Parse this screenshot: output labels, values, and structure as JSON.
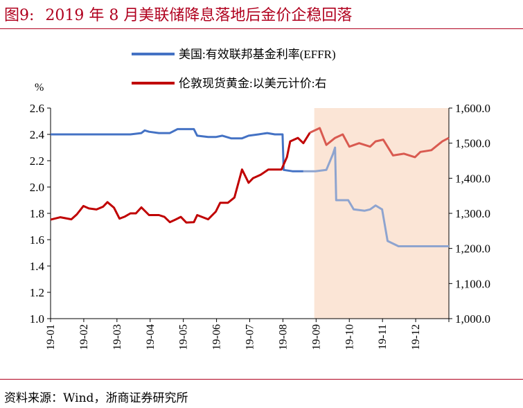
{
  "header": {
    "figure_no": "图9:",
    "title": "2019 年 8 月美联储降息落地后金价企稳回落"
  },
  "source": "资料来源：Wind，浙商证券研究所",
  "colors": {
    "title": "#b0001e",
    "effr": "#4472c4",
    "gold": "#c00000",
    "shade": "#fbe5d6",
    "effr_faded": "#8ea4cf",
    "gold_faded": "#d95a50"
  },
  "chart_data": {
    "type": "line",
    "left_unit": "%",
    "left_axis": {
      "ylim": [
        1.0,
        2.6
      ],
      "ticks": [
        "1.0",
        "1.2",
        "1.4",
        "1.6",
        "1.8",
        "2.0",
        "2.2",
        "2.4",
        "2.6"
      ]
    },
    "right_axis": {
      "ylim": [
        1000,
        1600
      ],
      "ticks": [
        "1,000.0",
        "1,100.0",
        "1,200.0",
        "1,300.0",
        "1,400.0",
        "1,500.0",
        "1,600.0"
      ]
    },
    "x_ticks": [
      "19-01",
      "19-02",
      "19-03",
      "19-04",
      "19-05",
      "19-06",
      "19-07",
      "19-08",
      "19-09",
      "19-10",
      "19-11",
      "19-12"
    ],
    "shaded_region": {
      "from": "2019-08-30",
      "to": "2019-12-31"
    },
    "series": [
      {
        "name": "美国:有效联邦基金利率(EFFR)",
        "axis": "left",
        "points": [
          [
            "2019-01-01",
            2.4
          ],
          [
            "2019-01-15",
            2.4
          ],
          [
            "2019-02-01",
            2.4
          ],
          [
            "2019-02-15",
            2.4
          ],
          [
            "2019-03-01",
            2.4
          ],
          [
            "2019-03-15",
            2.4
          ],
          [
            "2019-03-25",
            2.41
          ],
          [
            "2019-03-28",
            2.43
          ],
          [
            "2019-04-01",
            2.42
          ],
          [
            "2019-04-10",
            2.41
          ],
          [
            "2019-04-20",
            2.41
          ],
          [
            "2019-04-27",
            2.44
          ],
          [
            "2019-05-05",
            2.44
          ],
          [
            "2019-05-12",
            2.44
          ],
          [
            "2019-05-15",
            2.39
          ],
          [
            "2019-05-25",
            2.38
          ],
          [
            "2019-06-01",
            2.38
          ],
          [
            "2019-06-07",
            2.39
          ],
          [
            "2019-06-15",
            2.37
          ],
          [
            "2019-06-25",
            2.37
          ],
          [
            "2019-07-01",
            2.39
          ],
          [
            "2019-07-10",
            2.4
          ],
          [
            "2019-07-18",
            2.41
          ],
          [
            "2019-07-25",
            2.4
          ],
          [
            "2019-08-01",
            2.4
          ],
          [
            "2019-08-02",
            2.13
          ],
          [
            "2019-08-10",
            2.12
          ],
          [
            "2019-08-20",
            2.12
          ],
          [
            "2019-08-31",
            2.12
          ],
          [
            "2019-09-10",
            2.13
          ],
          [
            "2019-09-16",
            2.25
          ],
          [
            "2019-09-18",
            2.3
          ],
          [
            "2019-09-19",
            1.9
          ],
          [
            "2019-09-30",
            1.9
          ],
          [
            "2019-10-05",
            1.83
          ],
          [
            "2019-10-15",
            1.82
          ],
          [
            "2019-10-20",
            1.83
          ],
          [
            "2019-10-25",
            1.86
          ],
          [
            "2019-10-31",
            1.83
          ],
          [
            "2019-11-05",
            1.59
          ],
          [
            "2019-11-15",
            1.55
          ],
          [
            "2019-11-30",
            1.55
          ],
          [
            "2019-12-10",
            1.55
          ],
          [
            "2019-12-31",
            1.55
          ]
        ]
      },
      {
        "name": "伦敦现货黄金:以美元计价:右",
        "axis": "right",
        "points": [
          [
            "2019-01-01",
            1282
          ],
          [
            "2019-01-10",
            1289
          ],
          [
            "2019-01-20",
            1283
          ],
          [
            "2019-01-25",
            1297
          ],
          [
            "2019-01-31",
            1321
          ],
          [
            "2019-02-05",
            1314
          ],
          [
            "2019-02-12",
            1311
          ],
          [
            "2019-02-18",
            1319
          ],
          [
            "2019-02-22",
            1332
          ],
          [
            "2019-02-28",
            1316
          ],
          [
            "2019-03-05",
            1285
          ],
          [
            "2019-03-10",
            1291
          ],
          [
            "2019-03-15",
            1300
          ],
          [
            "2019-03-20",
            1300
          ],
          [
            "2019-03-25",
            1317
          ],
          [
            "2019-04-01",
            1295
          ],
          [
            "2019-04-10",
            1295
          ],
          [
            "2019-04-15",
            1290
          ],
          [
            "2019-04-20",
            1275
          ],
          [
            "2019-04-25",
            1282
          ],
          [
            "2019-04-30",
            1290
          ],
          [
            "2019-05-05",
            1274
          ],
          [
            "2019-05-12",
            1275
          ],
          [
            "2019-05-15",
            1295
          ],
          [
            "2019-05-25",
            1283
          ],
          [
            "2019-06-01",
            1305
          ],
          [
            "2019-06-05",
            1330
          ],
          [
            "2019-06-12",
            1330
          ],
          [
            "2019-06-18",
            1345
          ],
          [
            "2019-06-25",
            1425
          ],
          [
            "2019-07-01",
            1387
          ],
          [
            "2019-07-05",
            1400
          ],
          [
            "2019-07-12",
            1410
          ],
          [
            "2019-07-19",
            1425
          ],
          [
            "2019-07-31",
            1425
          ],
          [
            "2019-08-05",
            1460
          ],
          [
            "2019-08-08",
            1505
          ],
          [
            "2019-08-15",
            1515
          ],
          [
            "2019-08-20",
            1500
          ],
          [
            "2019-08-26",
            1530
          ],
          [
            "2019-09-04",
            1543
          ],
          [
            "2019-09-10",
            1495
          ],
          [
            "2019-09-18",
            1515
          ],
          [
            "2019-09-25",
            1525
          ],
          [
            "2019-10-01",
            1490
          ],
          [
            "2019-10-10",
            1500
          ],
          [
            "2019-10-20",
            1490
          ],
          [
            "2019-10-25",
            1505
          ],
          [
            "2019-11-01",
            1510
          ],
          [
            "2019-11-10",
            1465
          ],
          [
            "2019-11-20",
            1470
          ],
          [
            "2019-11-30",
            1460
          ],
          [
            "2019-12-05",
            1475
          ],
          [
            "2019-12-15",
            1480
          ],
          [
            "2019-12-25",
            1505
          ],
          [
            "2019-12-31",
            1515
          ]
        ]
      }
    ]
  }
}
